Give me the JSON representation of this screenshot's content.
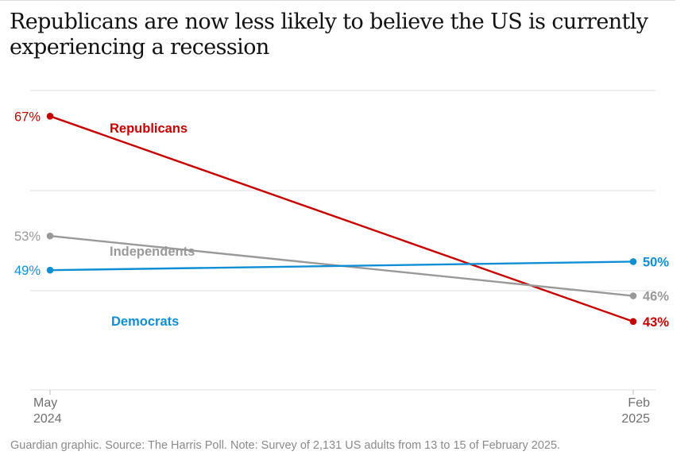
{
  "title": "Republicans are now less likely to believe the US is currently experiencing a recession",
  "source": "Guardian graphic. Source: The Harris Poll. Note: Survey of 2,131 US adults from 13 to 15 of February 2025.",
  "colors": {
    "republicans": "#c70000",
    "independents": "#999999",
    "democrats": "#0f8fd3",
    "grid": "#dcdcdc",
    "axis_text": "#707070"
  },
  "chart_data": {
    "type": "line",
    "title": "Republicans are now less likely to believe the US is currently experiencing a recession",
    "x": [
      "May 2024",
      "Feb 2025"
    ],
    "x_tick_labels": [
      {
        "line1": "May",
        "line2": "2024"
      },
      {
        "line1": "Feb",
        "line2": "2025"
      }
    ],
    "ylim": [
      35,
      70
    ],
    "grid": true,
    "series": [
      {
        "name": "Republicans",
        "values": [
          67,
          43
        ],
        "labels": [
          "67%",
          "43%"
        ],
        "color": "#c70000"
      },
      {
        "name": "Independents",
        "values": [
          53,
          46
        ],
        "labels": [
          "53%",
          "46%"
        ],
        "color": "#999999"
      },
      {
        "name": "Democrats",
        "values": [
          49,
          50
        ],
        "labels": [
          "49%",
          "50%"
        ],
        "color": "#0f8fd3"
      }
    ]
  }
}
